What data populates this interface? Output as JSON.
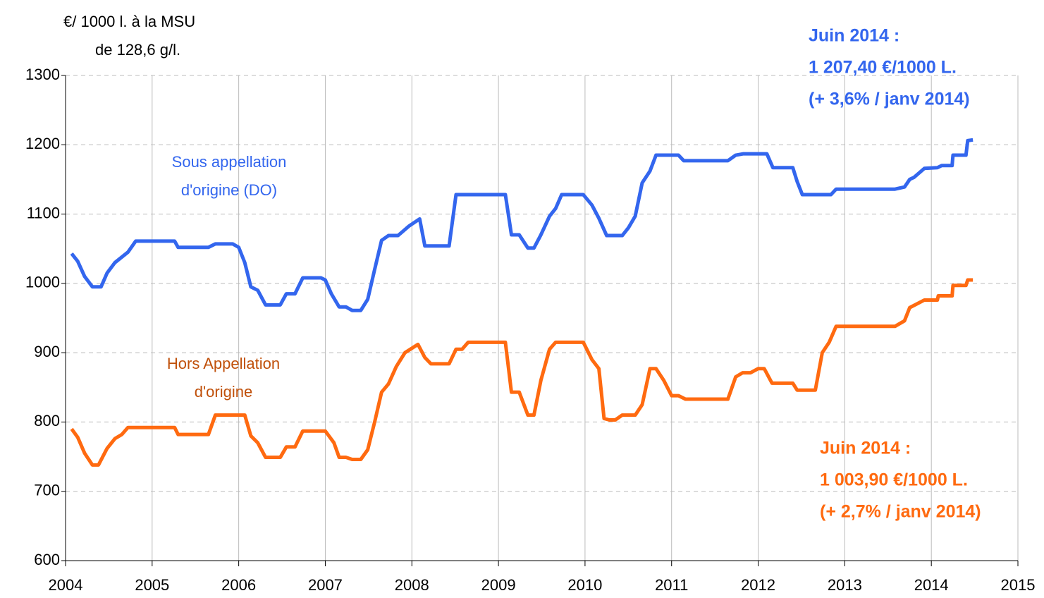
{
  "chart_data": {
    "type": "line",
    "y_axis_label": [
      "€/ 1000 l. à la MSU",
      "de 128,6 g/l."
    ],
    "xlim": [
      2004,
      2015
    ],
    "xticks": [
      2004,
      2005,
      2006,
      2007,
      2008,
      2009,
      2010,
      2011,
      2012,
      2013,
      2014,
      2015
    ],
    "ylim": [
      600,
      1300
    ],
    "yticks": [
      600,
      700,
      800,
      900,
      1000,
      1100,
      1200,
      1300
    ],
    "grid": true,
    "series": [
      {
        "name": [
          "Sous appellation",
          "d'origine (DO)"
        ],
        "color": "#3366ee",
        "x": [
          2004.07,
          2004.14,
          2004.22,
          2004.31,
          2004.41,
          2004.48,
          2004.57,
          2004.72,
          2004.81,
          2005.26,
          2005.3,
          2005.65,
          2005.73,
          2005.93,
          2006.0,
          2006.07,
          2006.14,
          2006.22,
          2006.31,
          2006.48,
          2006.55,
          2006.65,
          2006.74,
          2006.95,
          2007.0,
          2007.07,
          2007.16,
          2007.24,
          2007.31,
          2007.41,
          2007.49,
          2007.57,
          2007.65,
          2007.73,
          2007.84,
          2007.97,
          2008.09,
          2008.15,
          2008.43,
          2008.51,
          2009.08,
          2009.15,
          2009.24,
          2009.34,
          2009.41,
          2009.49,
          2009.59,
          2009.66,
          2009.73,
          2009.98,
          2010.08,
          2010.16,
          2010.25,
          2010.43,
          2010.5,
          2010.58,
          2010.66,
          2010.75,
          2010.82,
          2011.08,
          2011.14,
          2011.65,
          2011.74,
          2011.83,
          2012.1,
          2012.17,
          2012.4,
          2012.45,
          2012.51,
          2012.84,
          2012.9,
          2013.58,
          2013.69,
          2013.75,
          2013.8,
          2013.92,
          2014.07,
          2014.12,
          2014.24,
          2014.25,
          2014.4,
          2014.42,
          2014.48
        ],
        "values": [
          1043,
          1032,
          1010,
          995,
          995,
          1015,
          1030,
          1045,
          1061,
          1061,
          1052,
          1052,
          1057,
          1057,
          1052,
          1030,
          995,
          990,
          969,
          969,
          985,
          985,
          1008,
          1008,
          1005,
          985,
          966,
          966,
          961,
          961,
          977,
          1020,
          1062,
          1069,
          1069,
          1083,
          1093,
          1054,
          1054,
          1128,
          1128,
          1070,
          1070,
          1051,
          1051,
          1070,
          1097,
          1108,
          1128,
          1128,
          1113,
          1094,
          1069,
          1069,
          1080,
          1097,
          1145,
          1162,
          1185,
          1185,
          1177,
          1177,
          1185,
          1187,
          1187,
          1167,
          1167,
          1147,
          1128,
          1128,
          1136,
          1136,
          1139,
          1150,
          1153,
          1166,
          1167,
          1170,
          1170,
          1185,
          1185,
          1206,
          1207
        ]
      },
      {
        "name": [
          "Hors Appellation",
          "d'origine"
        ],
        "color": "#ff6a10",
        "label_color": "#c0500a",
        "x": [
          2004.07,
          2004.14,
          2004.22,
          2004.31,
          2004.38,
          2004.48,
          2004.57,
          2004.65,
          2004.72,
          2005.26,
          2005.3,
          2005.65,
          2005.73,
          2006.07,
          2006.14,
          2006.22,
          2006.31,
          2006.48,
          2006.55,
          2006.65,
          2006.74,
          2007.0,
          2007.1,
          2007.16,
          2007.24,
          2007.31,
          2007.41,
          2007.49,
          2007.57,
          2007.65,
          2007.73,
          2007.82,
          2007.92,
          2008.07,
          2008.15,
          2008.22,
          2008.43,
          2008.51,
          2008.58,
          2008.65,
          2009.08,
          2009.15,
          2009.24,
          2009.34,
          2009.41,
          2009.49,
          2009.59,
          2009.66,
          2009.98,
          2010.08,
          2010.16,
          2010.22,
          2010.28,
          2010.35,
          2010.43,
          2010.58,
          2010.66,
          2010.75,
          2010.82,
          2010.91,
          2011.0,
          2011.08,
          2011.16,
          2011.65,
          2011.74,
          2011.82,
          2011.91,
          2012.0,
          2012.07,
          2012.16,
          2012.4,
          2012.45,
          2012.66,
          2012.74,
          2012.82,
          2012.9,
          2013.58,
          2013.69,
          2013.75,
          2013.92,
          2014.07,
          2014.08,
          2014.24,
          2014.25,
          2014.4,
          2014.42,
          2014.48
        ],
        "values": [
          790,
          778,
          755,
          738,
          738,
          762,
          776,
          782,
          792,
          792,
          782,
          782,
          810,
          810,
          780,
          770,
          749,
          749,
          764,
          764,
          787,
          787,
          770,
          749,
          749,
          746,
          746,
          760,
          800,
          843,
          855,
          880,
          900,
          912,
          893,
          884,
          884,
          905,
          905,
          915,
          915,
          843,
          843,
          810,
          810,
          860,
          905,
          915,
          915,
          890,
          877,
          805,
          803,
          803,
          810,
          810,
          825,
          877,
          877,
          860,
          838,
          838,
          833,
          833,
          865,
          871,
          871,
          877,
          877,
          856,
          856,
          846,
          846,
          900,
          915,
          938,
          938,
          946,
          965,
          976,
          976,
          982,
          982,
          997,
          997,
          1005,
          1005
        ]
      }
    ],
    "annotations": [
      {
        "lines": [
          "Juin 2014 :",
          "1 207,40 €/1000 L.",
          "(+ 3,6% / janv 2014)"
        ],
        "color": "#3366ee"
      },
      {
        "lines": [
          "Juin 2014 :",
          "1 003,90 €/1000 L.",
          "(+ 2,7% / janv 2014)"
        ],
        "color": "#ff6a10"
      }
    ]
  }
}
